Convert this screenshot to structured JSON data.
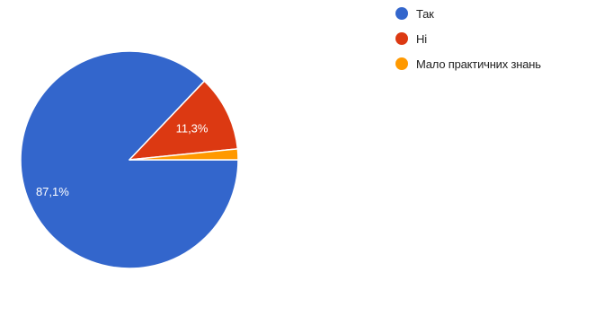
{
  "chart_data": {
    "type": "pie",
    "categories": [
      "Так",
      "Ні",
      "Мало практичних знань"
    ],
    "values": [
      87.1,
      11.3,
      1.6
    ],
    "data_labels": [
      "87,1%",
      "11,3%",
      ""
    ],
    "colors": [
      "#3366cc",
      "#dc3912",
      "#ff9900"
    ],
    "legend_position": "right",
    "title": ""
  }
}
